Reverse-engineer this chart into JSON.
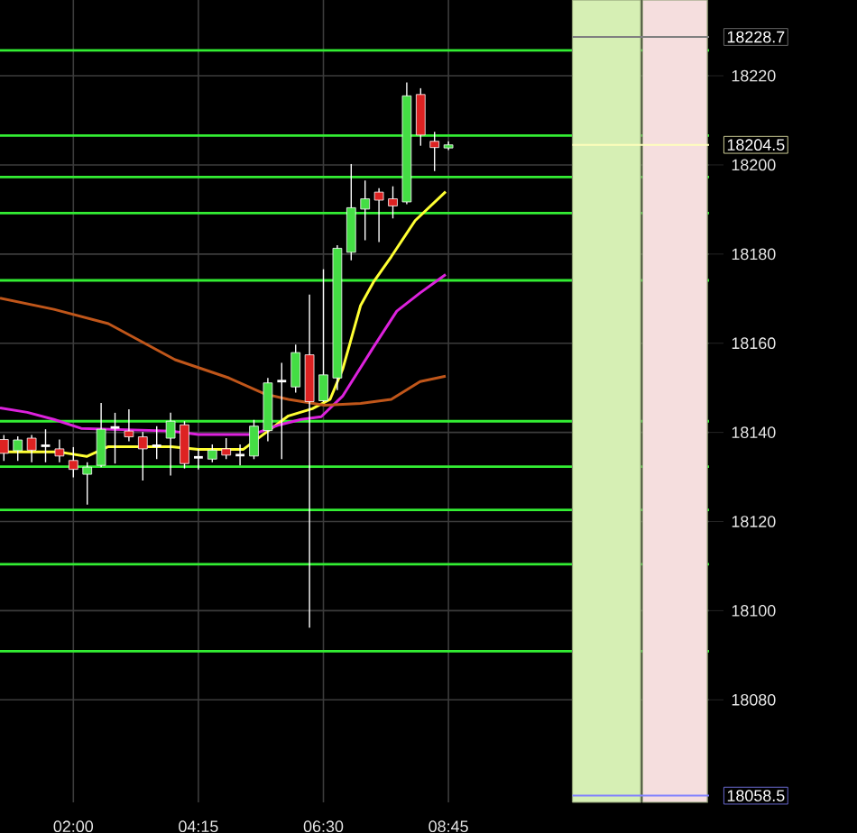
{
  "chart_data": {
    "type": "candlestick",
    "x": [
      0.75,
      1.0,
      1.25,
      1.5,
      1.75,
      2.0,
      2.25,
      2.5,
      2.75,
      3.0,
      3.25,
      3.5,
      3.75,
      4.0,
      4.25,
      4.5,
      4.75,
      5.0,
      5.25,
      5.5,
      5.75,
      6.0,
      6.25,
      6.5,
      6.75,
      7.0,
      7.25,
      7.5,
      7.75,
      8.0,
      8.25,
      8.5,
      8.75
    ],
    "ohlc": [
      [
        18138.4,
        18139.4,
        18133.6,
        18135.3
      ],
      [
        18135.9,
        18139.1,
        18133.6,
        18138.3
      ],
      [
        18138.7,
        18139.4,
        18133.3,
        18136.0
      ],
      [
        18137.0,
        18140.7,
        18133.3,
        18137.0
      ],
      [
        18136.3,
        18138.4,
        18133.3,
        18134.7
      ],
      [
        18133.7,
        18136.7,
        18129.9,
        18131.7
      ],
      [
        18130.6,
        18133.3,
        18123.8,
        18132.2
      ],
      [
        18132.6,
        18146.6,
        18132.2,
        18140.7
      ],
      [
        18141.1,
        18144.4,
        18133.0,
        18141.1
      ],
      [
        18140.3,
        18145.2,
        18138.0,
        18139.0
      ],
      [
        18139.0,
        18140.1,
        18129.2,
        18136.3
      ],
      [
        18137.0,
        18141.4,
        18134.0,
        18137.0
      ],
      [
        18138.7,
        18144.4,
        18130.3,
        18142.5
      ],
      [
        18141.7,
        18142.5,
        18131.9,
        18133.0
      ],
      [
        18134.4,
        18136.3,
        18131.7,
        18134.4
      ],
      [
        18134.0,
        18137.3,
        18133.3,
        18136.0
      ],
      [
        18136.3,
        18138.7,
        18134.0,
        18134.9
      ],
      [
        18134.9,
        18137.3,
        18132.6,
        18134.9
      ],
      [
        18134.7,
        18142.8,
        18134.0,
        18141.4
      ],
      [
        18140.4,
        18152.2,
        18138.0,
        18151.1
      ],
      [
        18151.5,
        18155.6,
        18134.0,
        18151.5
      ],
      [
        18150.2,
        18159.7,
        18148.9,
        18157.9
      ],
      [
        18157.4,
        18170.9,
        18096.2,
        18146.9
      ],
      [
        18147.1,
        18176.6,
        18146.8,
        18152.9
      ],
      [
        18152.2,
        18182.0,
        18149.5,
        18181.3
      ],
      [
        18180.4,
        18200.2,
        18178.6,
        18190.4
      ],
      [
        18190.1,
        18196.5,
        18183.1,
        18192.4
      ],
      [
        18193.9,
        18194.8,
        18182.7,
        18192.1
      ],
      [
        18192.4,
        18195.2,
        18188.0,
        18190.8
      ],
      [
        18191.7,
        18218.5,
        18191.2,
        18215.5
      ],
      [
        18215.8,
        18217.2,
        18204.3,
        18206.7
      ],
      [
        18205.3,
        18207.4,
        18198.6,
        18203.9
      ],
      [
        18203.8,
        18205.3,
        18203.3,
        18204.5
      ]
    ],
    "colors": [
      "#dd2222",
      "#44dd44",
      "#dd2222",
      "#ffffff",
      "#dd2222",
      "#dd2222",
      "#44dd44",
      "#44dd44",
      "#ffffff",
      "#dd2222",
      "#dd2222",
      "#ffffff",
      "#44dd44",
      "#dd2222",
      "#ffffff",
      "#44dd44",
      "#dd2222",
      "#ffffff",
      "#44dd44",
      "#44dd44",
      "#ffffff",
      "#44dd44",
      "#dd2222",
      "#44dd44",
      "#44dd44",
      "#44dd44",
      "#44dd44",
      "#dd2222",
      "#dd2222",
      "#44dd44",
      "#dd2222",
      "#dd2222",
      "#44dd44"
    ],
    "series": [
      {
        "type": "line",
        "color": "#ffff33",
        "x": [
          0.68,
          1.75,
          2.24,
          2.63,
          3.76,
          4.25,
          5.06,
          5.48,
          5.87,
          6.3,
          6.62,
          6.85,
          7.17,
          7.4,
          7.72,
          8.15,
          8.7
        ],
        "values": [
          18135.6,
          18135.6,
          18134.6,
          18136.8,
          18136.8,
          18136.2,
          18136.2,
          18140.1,
          18143.7,
          18145.3,
          18147.4,
          18154.3,
          18168.5,
          18173.7,
          18179.4,
          18187.5,
          18194.0
        ]
      },
      {
        "type": "line",
        "color": "#dd22dd",
        "x": [
          0.68,
          1.17,
          1.65,
          2.14,
          3.76,
          4.25,
          5.22,
          5.71,
          6.1,
          6.46,
          6.85,
          7.4,
          7.82,
          8.24,
          8.7
        ],
        "values": [
          18145.5,
          18144.5,
          18142.9,
          18140.9,
          18140.3,
          18139.5,
          18139.5,
          18141.7,
          18142.9,
          18143.5,
          18148.2,
          18159.1,
          18167.2,
          18171.3,
          18175.4
        ]
      },
      {
        "type": "line",
        "color": "#c0561a",
        "x": [
          0.68,
          1.65,
          2.63,
          3.83,
          4.8,
          5.45,
          5.87,
          6.52,
          7.17,
          7.72,
          8.24,
          8.7
        ],
        "values": [
          18170.1,
          18167.6,
          18164.4,
          18156.3,
          18152.2,
          18148.6,
          18147.4,
          18146.1,
          18146.5,
          18147.4,
          18151.4,
          18152.6
        ]
      }
    ],
    "xlim": [
      0.68,
      13.44
    ],
    "ylim": [
      18057,
      18237
    ],
    "xticks": [
      {
        "value": 2,
        "label": "02:00"
      },
      {
        "value": 4.25,
        "label": "04:15"
      },
      {
        "value": 6.5,
        "label": "06:30"
      },
      {
        "value": 8.75,
        "label": "08:45"
      }
    ],
    "yticks": [
      18080,
      18100,
      18120,
      18140,
      18160,
      18180,
      18200,
      18220
    ],
    "grid": true,
    "ref_lines": [
      {
        "axis": "y",
        "value": 18225.7,
        "color": "#33ee33"
      },
      {
        "axis": "y",
        "value": 18206.6,
        "color": "#33ee33"
      },
      {
        "axis": "y",
        "value": 18197.3,
        "color": "#33ee33"
      },
      {
        "axis": "y",
        "value": 18189.2,
        "color": "#33ee33"
      },
      {
        "axis": "y",
        "value": 18174.1,
        "color": "#33ee33"
      },
      {
        "axis": "y",
        "value": 18142.5,
        "color": "#33ee33"
      },
      {
        "axis": "y",
        "value": 18132.3,
        "color": "#33ee33"
      },
      {
        "axis": "y",
        "value": 18122.6,
        "color": "#33ee33"
      },
      {
        "axis": "y",
        "value": 18110.4,
        "color": "#33ee33"
      },
      {
        "axis": "y",
        "value": 18090.9,
        "color": "#33ee33"
      },
      {
        "axis": "y",
        "value": 18228.7,
        "label": "18228.7",
        "color": "#808080"
      },
      {
        "axis": "y",
        "value": 18204.5,
        "label": "18204.5",
        "color": "#ffffbb"
      },
      {
        "axis": "y",
        "value": 18058.5,
        "label": "18058.5",
        "color": "#8080ff"
      }
    ],
    "bands": [
      {
        "axis": "x",
        "from": 10.98,
        "to": 12.21,
        "color": "#d6efb4"
      },
      {
        "axis": "x",
        "from": 12.24,
        "to": 13.41,
        "color": "#f5dede"
      }
    ]
  }
}
